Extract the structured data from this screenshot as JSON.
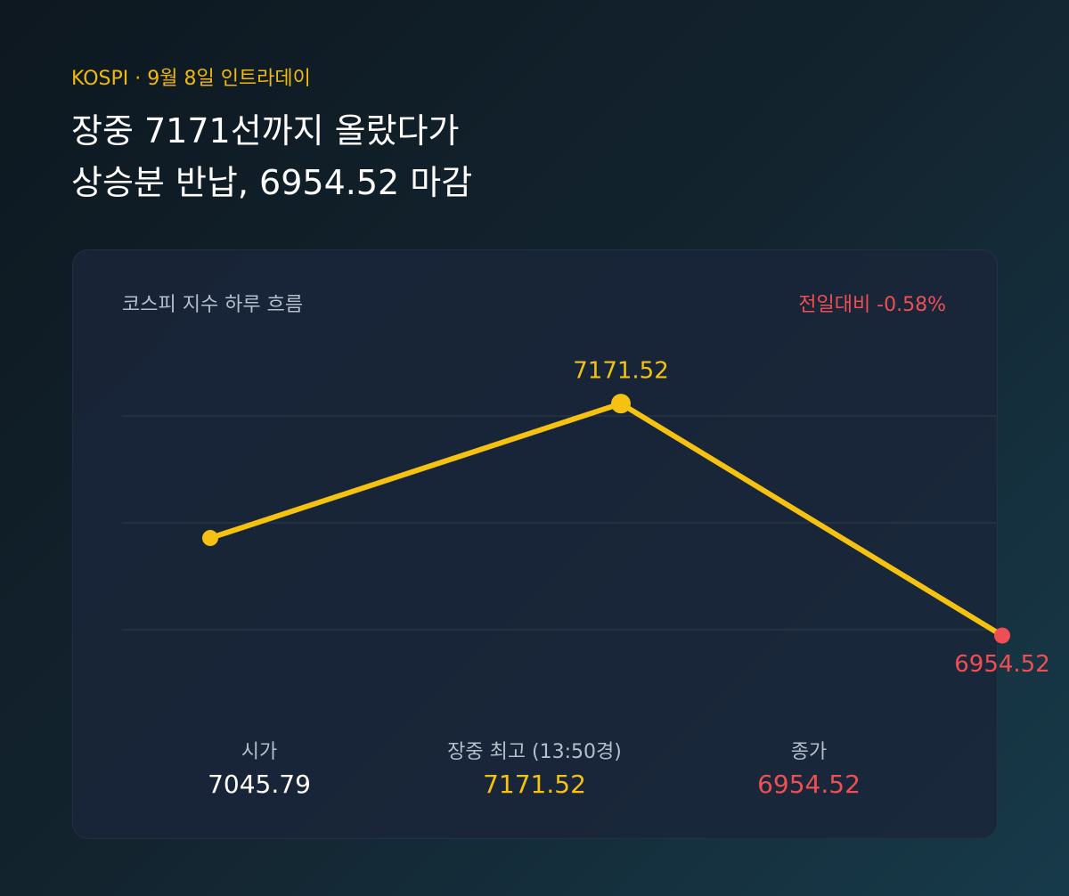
{
  "header": {
    "eyebrow": "KOSPI · 9월 8일 인트라데이",
    "title_lines": [
      "장중 7171선까지 올랐다가",
      "상승분 반납, 6954.52 마감"
    ]
  },
  "chart_data": {
    "type": "line",
    "title": "코스피 지수 하루 흐름",
    "annotation": "전일대비 -0.58%",
    "categories": [
      "시가",
      "장중 최고 (13:50경)",
      "종가"
    ],
    "values": [
      7045.79,
      7171.52,
      6954.52
    ],
    "value_labels": [
      null,
      "7171.52",
      "6954.52"
    ],
    "color": "#f5c211",
    "point_colors": [
      "#f5c211",
      "#f5c211",
      "#ef4f52"
    ],
    "ylim": [
      6940,
      7190
    ],
    "yticks": [
      6960,
      7060,
      7160
    ],
    "grid": true
  }
}
